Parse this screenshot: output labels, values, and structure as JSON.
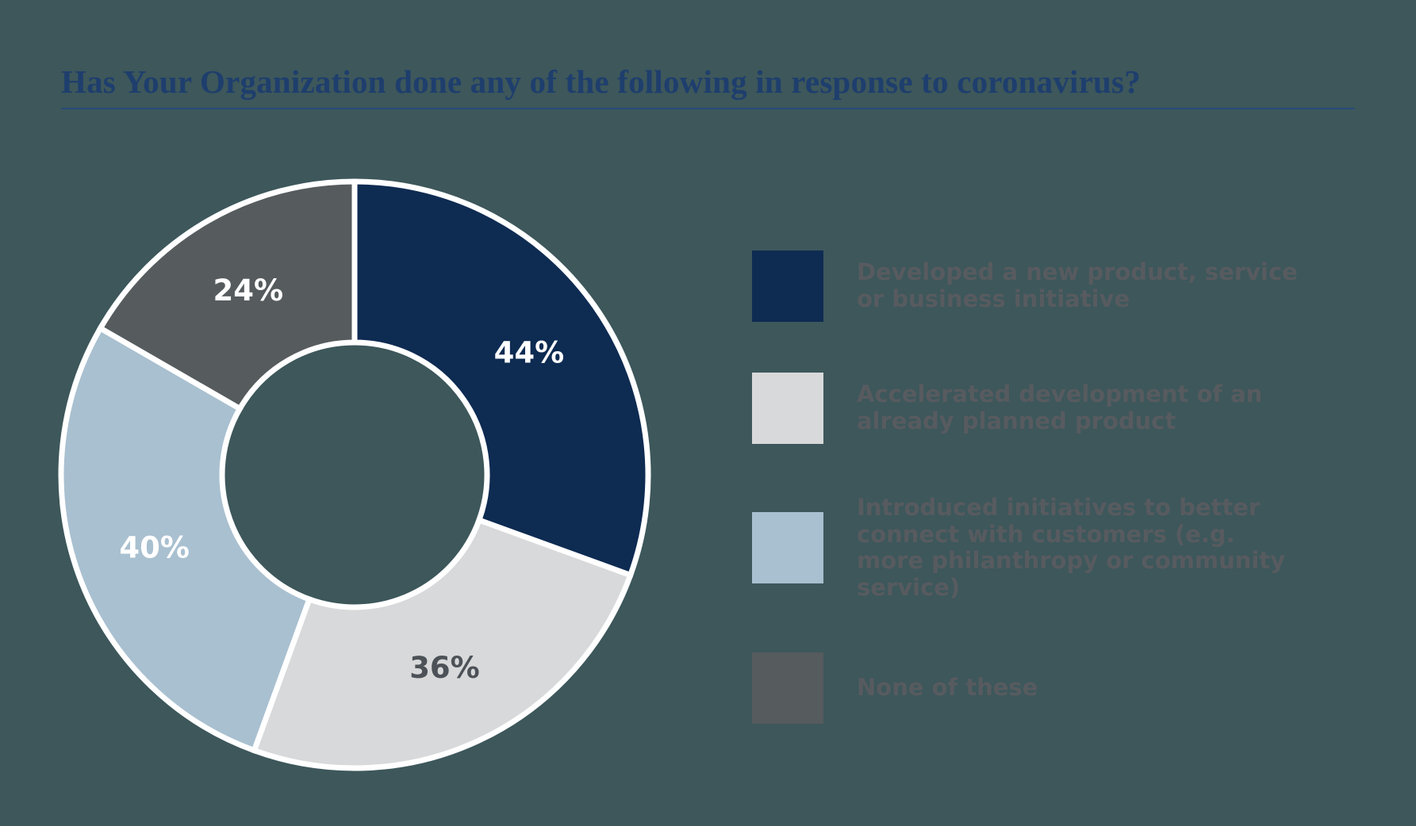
{
  "page": {
    "background": "#3d575b"
  },
  "title": {
    "text": "Has Your Organization done any of the following in response to coronavirus?",
    "color": "#1e3e6d",
    "underline_color": "#274a7a"
  },
  "chart_data": {
    "type": "pie",
    "subtype": "donut",
    "title": "Has Your Organization done any of the following in response to coronavirus?",
    "legend_position": "right",
    "categories": [
      "Developed a new product, service or business initiative",
      "Accelerated development of an already planned product",
      "Introduced initiatives to better connect with customers (e.g. more philanthropy or community service)",
      "None of these"
    ],
    "values": [
      44,
      36,
      40,
      24
    ],
    "value_labels": [
      "44%",
      "36%",
      "40%",
      "24%"
    ],
    "colors": [
      "#0e2b52",
      "#d8d9da",
      "#a9c0d0",
      "#565b5e"
    ],
    "value_label_colors": [
      "#ffffff",
      "#4c5257",
      "#ffffff",
      "#ffffff"
    ],
    "slice_border_color": "#ffffff",
    "donut_hole_ratio": 0.45,
    "start_angle_deg": -90,
    "direction": "clockwise"
  },
  "legend": {
    "text_color": "#575b5f",
    "items": [
      {
        "label": "Developed a new product, service or business initiative"
      },
      {
        "label": "Accelerated development of an already planned product"
      },
      {
        "label": "Introduced initiatives to better connect with customers (e.g. more philanthropy or community service)"
      },
      {
        "label": "None of these"
      }
    ]
  }
}
